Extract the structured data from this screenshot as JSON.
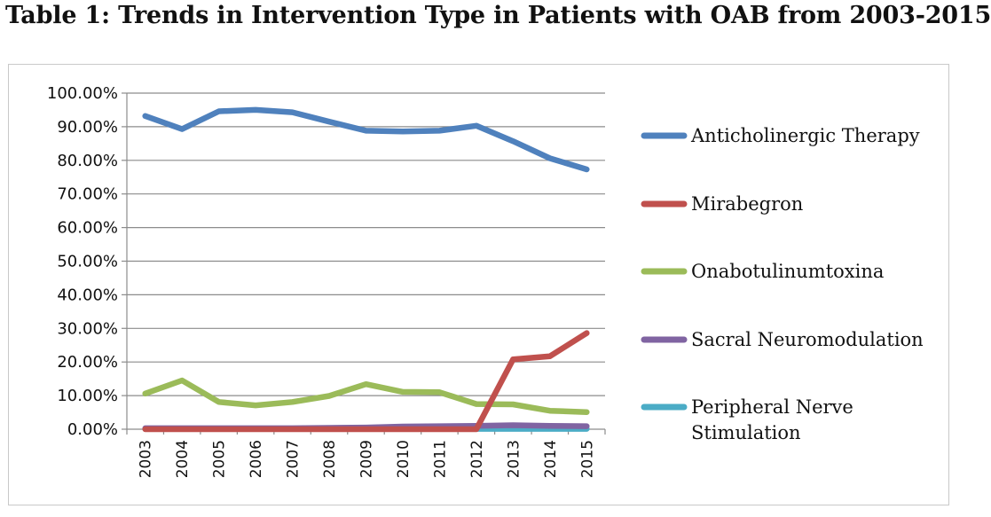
{
  "title": "Table 1: Trends in Intervention Type in Patients with OAB from 2003-2015",
  "chart_data": {
    "type": "line",
    "x": [
      "2003",
      "2004",
      "2005",
      "2006",
      "2007",
      "2008",
      "2009",
      "2010",
      "2011",
      "2012",
      "2013",
      "2014",
      "2015"
    ],
    "ylim": [
      0,
      100
    ],
    "yticks": [
      "0.00%",
      "10.00%",
      "20.00%",
      "30.00%",
      "40.00%",
      "50.00%",
      "60.00%",
      "70.00%",
      "80.00%",
      "90.00%",
      "100.00%"
    ],
    "grid": true,
    "legend_position": "right",
    "series": [
      {
        "name": "Anticholinergic Therapy",
        "color": "#4f81bd",
        "values": [
          93.2,
          89.3,
          94.6,
          95.0,
          94.3,
          91.5,
          88.8,
          88.6,
          88.8,
          90.3,
          85.7,
          80.6,
          77.3
        ]
      },
      {
        "name": "Mirabegron",
        "color": "#c0504d",
        "values": [
          0,
          0,
          0,
          0,
          0,
          0,
          0,
          0,
          0,
          0,
          20.8,
          21.7,
          28.6
        ]
      },
      {
        "name": "Onabotulinumtoxina",
        "color": "#9bbb59",
        "values": [
          10.6,
          14.5,
          8.1,
          7.1,
          8.1,
          9.9,
          13.4,
          11.1,
          11.0,
          7.5,
          7.4,
          5.5,
          5.1
        ]
      },
      {
        "name": "Sacral Neuromodulation",
        "color": "#8064a2",
        "values": [
          0.3,
          0.3,
          0.3,
          0.3,
          0.3,
          0.4,
          0.5,
          0.8,
          0.9,
          1.0,
          1.2,
          1.0,
          0.9
        ]
      },
      {
        "name": "Peripheral Nerve Stimulation",
        "color": "#4bacc6",
        "values": [
          0.1,
          0.1,
          0.1,
          0.1,
          0.1,
          0.1,
          0.1,
          0.1,
          0.1,
          0.1,
          0.1,
          0.1,
          0.1
        ]
      }
    ]
  }
}
